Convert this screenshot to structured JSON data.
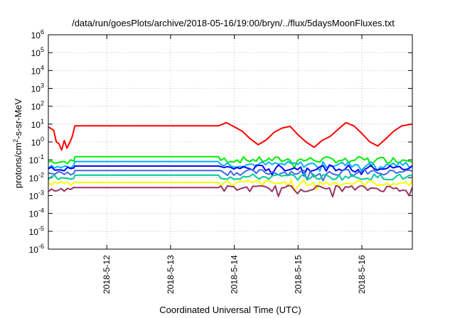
{
  "chart_data": {
    "type": "line",
    "title": "/data/run/goesPlots/archive/2018-05-16/19:00/bryn/../flux/5daysMoonFluxes.txt",
    "xlabel": "Coordinated Universal Time (UTC)",
    "ylabel": {
      "prefix": "protons/cm",
      "sup": "2",
      "suffix": "-s-sr-MeV"
    },
    "y_scale": "log",
    "ylim": [
      1e-06,
      1000000
    ],
    "y_ticks": [
      {
        "base": "10",
        "exp": "-6"
      },
      {
        "base": "10",
        "exp": "-5"
      },
      {
        "base": "10",
        "exp": "-4"
      },
      {
        "base": "10",
        "exp": "-3"
      },
      {
        "base": "10",
        "exp": "-2"
      },
      {
        "base": "10",
        "exp": "-1"
      },
      {
        "base": "10",
        "exp": "0"
      },
      {
        "base": "10",
        "exp": "1"
      },
      {
        "base": "10",
        "exp": "2"
      },
      {
        "base": "10",
        "exp": "3"
      },
      {
        "base": "10",
        "exp": "4"
      },
      {
        "base": "10",
        "exp": "5"
      },
      {
        "base": "10",
        "exp": "6"
      }
    ],
    "xlim": [
      "2018-05-11 02:00",
      "2018-05-16 19:00"
    ],
    "x_ticks": [
      "2018-5-12",
      "2018-5-13",
      "2018-5-14",
      "2018-5-15",
      "2018-5-16"
    ],
    "grid": true,
    "legend": "none",
    "data_gap": [
      "2018-05-11 12:00",
      "2018-05-13 18:00"
    ],
    "series": [
      {
        "color": "#ff0000",
        "points": [
          [
            "2018-05-11 02:00",
            7.0
          ],
          [
            "2018-05-11 04:00",
            4.5
          ],
          [
            "2018-05-11 05:00",
            1.0
          ],
          [
            "2018-05-11 06:00",
            0.8
          ],
          [
            "2018-05-11 07:00",
            0.35
          ],
          [
            "2018-05-11 08:00",
            1.2
          ],
          [
            "2018-05-11 09:00",
            0.45
          ],
          [
            "2018-05-11 10:00",
            0.9
          ],
          [
            "2018-05-11 11:00",
            2.0
          ],
          [
            "2018-05-11 12:00",
            8.0
          ],
          [
            "2018-05-13 18:00",
            8.0
          ],
          [
            "2018-05-13 21:00",
            12
          ],
          [
            "2018-05-14 00:00",
            7
          ],
          [
            "2018-05-14 03:00",
            4
          ],
          [
            "2018-05-14 06:00",
            1.5
          ],
          [
            "2018-05-14 09:00",
            0.7
          ],
          [
            "2018-05-14 12:00",
            1.3
          ],
          [
            "2018-05-14 15:00",
            3.5
          ],
          [
            "2018-05-14 18:00",
            6
          ],
          [
            "2018-05-14 21:00",
            7.5
          ],
          [
            "2018-05-15 00:00",
            2.5
          ],
          [
            "2018-05-15 03:00",
            1.0
          ],
          [
            "2018-05-15 06:00",
            0.5
          ],
          [
            "2018-05-15 09:00",
            1.2
          ],
          [
            "2018-05-15 12:00",
            2.0
          ],
          [
            "2018-05-15 15:00",
            5
          ],
          [
            "2018-05-15 18:00",
            12
          ],
          [
            "2018-05-15 21:00",
            8
          ],
          [
            "2018-05-16 00:00",
            3
          ],
          [
            "2018-05-16 03:00",
            1.0
          ],
          [
            "2018-05-16 06:00",
            0.6
          ],
          [
            "2018-05-16 09:00",
            1.5
          ],
          [
            "2018-05-16 12:00",
            4
          ],
          [
            "2018-05-16 15:00",
            8
          ],
          [
            "2018-05-16 19:00",
            10
          ]
        ]
      },
      {
        "color": "#00ee00",
        "flat_value": 0.15,
        "early_value": 0.08,
        "late_value": 0.1
      },
      {
        "color": "#00b0ff",
        "flat_value": 0.08,
        "early_value": 0.045,
        "late_value": 0.055
      },
      {
        "color": "#0000ff",
        "flat_value": 0.045,
        "early_value": 0.03,
        "late_value": 0.035
      },
      {
        "color": "#4169e1",
        "flat_value": 0.025,
        "early_value": 0.018,
        "late_value": 0.02
      },
      {
        "color": "#00cc99",
        "flat_value": 0.014,
        "early_value": 0.01,
        "late_value": 0.011
      },
      {
        "color": "#ffff00",
        "flat_value": 0.0055,
        "early_value": 0.0045,
        "late_value": 0.005
      },
      {
        "color": "#993366",
        "flat_value": 0.0028,
        "early_value": 0.0022,
        "late_value": 0.0025
      }
    ]
  }
}
